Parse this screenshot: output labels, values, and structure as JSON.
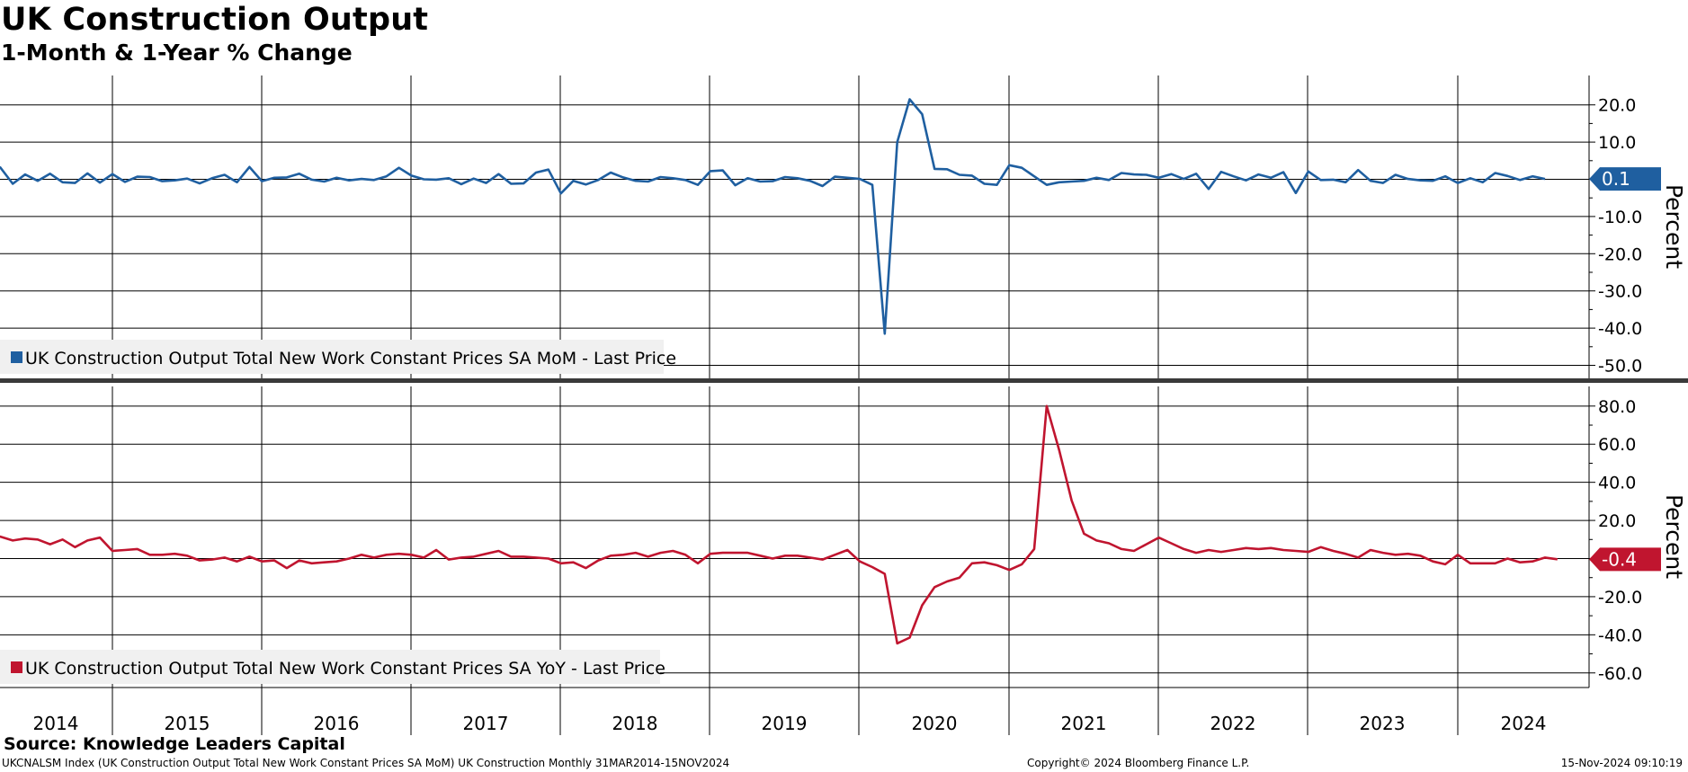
{
  "title": "UK Construction Output",
  "subtitle": "1-Month & 1-Year % Change",
  "footer": {
    "source": "Source: Knowledge Leaders Capital",
    "ticker_line": "UKCNALSM Index (UK Construction Output Total New Work Constant Prices SA MoM) UK Construction  Monthly 31MAR2014-15NOV2024",
    "copyright": "Copyright© 2024 Bloomberg Finance L.P.",
    "timestamp": "15-Nov-2024 09:10:19"
  },
  "x_axis": {
    "tick_labels": [
      "2014",
      "2015",
      "2016",
      "2017",
      "2018",
      "2019",
      "2020",
      "2021",
      "2022",
      "2023",
      "2024"
    ]
  },
  "chart_data": [
    {
      "type": "line",
      "panel": "top",
      "ylabel": "Percent",
      "ylim": [
        -52,
        28
      ],
      "y_ticks": [
        20,
        10,
        0,
        -10,
        -20,
        -30,
        -40,
        -50
      ],
      "y_tick_labels": [
        "20.0",
        "10.0",
        "0.0",
        "-10.0",
        "-20.0",
        "-30.0",
        "-40.0",
        "-50.0"
      ],
      "legend_position": "bottom-left",
      "series": [
        {
          "name": "UK Construction Output Total New Work Constant Prices SA MoM - Last Price",
          "color": "#1f5fa0",
          "last_value": "0.1",
          "x_start": "2014-03",
          "values": [
            2.5,
            3.2,
            -1.2,
            1.3,
            -0.4,
            1.5,
            -0.8,
            -1.0,
            1.6,
            -0.9,
            1.4,
            -0.7,
            0.7,
            0.6,
            -0.5,
            -0.3,
            0.2,
            -1.1,
            0.3,
            1.2,
            -0.8,
            3.3,
            -0.5,
            0.4,
            0.5,
            1.5,
            -0.1,
            -0.6,
            0.4,
            -0.3,
            0.1,
            -0.2,
            0.8,
            3.1,
            1.0,
            0.0,
            -0.1,
            0.3,
            -1.3,
            0.2,
            -1.0,
            1.4,
            -1.2,
            -1.1,
            1.8,
            2.6,
            -3.8,
            -0.4,
            -1.4,
            -0.2,
            1.8,
            0.5,
            -0.4,
            -0.6,
            0.6,
            0.3,
            -0.2,
            -1.5,
            2.2,
            2.4,
            -1.6,
            0.3,
            -0.6,
            -0.5,
            0.6,
            0.3,
            -0.4,
            -1.8,
            0.7,
            0.4,
            0.1,
            -1.5,
            -41.5,
            10.0,
            21.5,
            17.5,
            2.8,
            2.7,
            1.2,
            1.0,
            -1.2,
            -1.5,
            3.8,
            3.1,
            0.8,
            -1.5,
            -0.8,
            -0.6,
            -0.4,
            0.4,
            -0.2,
            1.7,
            1.3,
            1.2,
            0.4,
            1.4,
            0.1,
            1.5,
            -2.6,
            2.0,
            0.8,
            -0.3,
            1.3,
            0.4,
            1.9,
            -3.7,
            2.1,
            -0.2,
            -0.1,
            -0.8,
            2.5,
            -0.4,
            -1.0,
            1.2,
            0.1,
            -0.3,
            -0.4,
            0.8,
            -1.0,
            0.3,
            -0.8,
            1.7,
            0.9,
            -0.2,
            0.8,
            0.1
          ]
        }
      ]
    },
    {
      "type": "line",
      "panel": "bottom",
      "ylabel": "Percent",
      "ylim": [
        -66,
        94
      ],
      "y_ticks": [
        80,
        60,
        40,
        20,
        0,
        -20,
        -40,
        -60
      ],
      "y_tick_labels": [
        "80.0",
        "60.0",
        "40.0",
        "20.0",
        "0.0",
        "-20.0",
        "-40.0",
        "-60.0"
      ],
      "legend_position": "bottom-left",
      "series": [
        {
          "name": "UK Construction Output Total New Work Constant Prices SA YoY - Last Price",
          "color": "#c0152f",
          "last_value": "-0.4",
          "x_start": "2014-03",
          "values": [
            10.5,
            11.5,
            9.5,
            10.5,
            10.0,
            7.5,
            10.0,
            6.0,
            9.5,
            11.0,
            4.0,
            4.5,
            5.0,
            2.0,
            2.0,
            2.5,
            1.5,
            -1.0,
            -0.5,
            0.5,
            -1.5,
            1.0,
            -1.5,
            -1.0,
            -5.0,
            -1.0,
            -2.5,
            -2.0,
            -1.5,
            0.0,
            2.0,
            0.5,
            2.0,
            2.5,
            2.0,
            0.5,
            4.5,
            -0.5,
            0.5,
            1.0,
            2.5,
            4.0,
            1.0,
            1.0,
            0.5,
            0.0,
            -2.5,
            -2.0,
            -5.0,
            -1.0,
            1.5,
            2.0,
            3.0,
            1.0,
            3.0,
            4.0,
            2.0,
            -2.5,
            2.5,
            3.0,
            3.0,
            3.0,
            1.5,
            0.0,
            1.5,
            1.5,
            0.5,
            -0.5,
            2.0,
            4.5,
            -1.5,
            -4.5,
            -8.0,
            -44.5,
            -41.5,
            -24.5,
            -15.0,
            -12.0,
            -10.0,
            -2.5,
            -2.0,
            -3.5,
            -6.0,
            -3.0,
            5.0,
            80.0,
            57.0,
            30.5,
            13.0,
            9.5,
            8.0,
            5.0,
            4.0,
            7.5,
            11.0,
            8.0,
            5.0,
            3.0,
            4.5,
            3.5,
            4.5,
            5.5,
            5.0,
            5.5,
            4.5,
            4.0,
            3.5,
            6.0,
            4.0,
            2.5,
            0.5,
            4.5,
            3.0,
            2.0,
            2.5,
            1.5,
            -1.5,
            -3.0,
            2.0,
            -2.5,
            -2.5,
            -2.5,
            0.0,
            -2.0,
            -1.5,
            0.5,
            -0.4
          ]
        }
      ]
    }
  ]
}
